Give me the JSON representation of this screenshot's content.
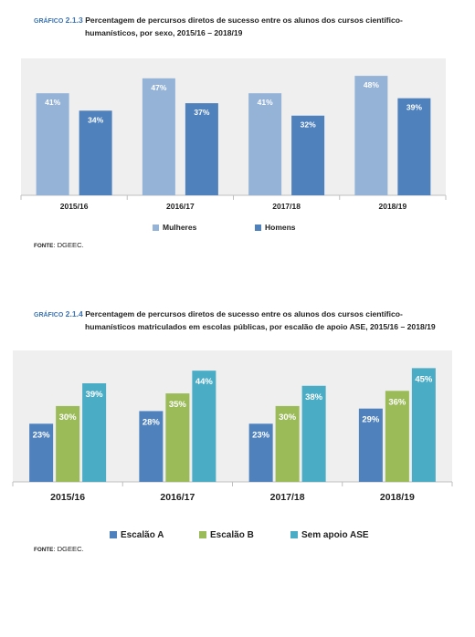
{
  "figures": [
    {
      "caption_label": "GRÁFICO",
      "caption_number": "2.1.3",
      "caption_line1": "Percentagem de percursos diretos de sucesso entre os alunos dos cursos científico-",
      "caption_line2": "humanísticos, por sexo, 2015/16 – 2018/19",
      "source_label": "FONTE",
      "source_text": ": DGEEC."
    },
    {
      "caption_label": "GRÁFICO",
      "caption_number": "2.1.4",
      "caption_line1": "Percentagem de percursos diretos de sucesso entre os alunos dos cursos científico-",
      "caption_line2": "humanísticos matriculados em escolas públicas, por escalão de apoio ASE, 2015/16 – 2018/19",
      "source_label": "FONTE",
      "source_text": ": DGEEC."
    }
  ],
  "chart_data": [
    {
      "type": "bar",
      "categories": [
        "2015/16",
        "2016/17",
        "2017/18",
        "2018/19"
      ],
      "series": [
        {
          "name": "Mulheres",
          "values": [
            41,
            47,
            41,
            48
          ],
          "labels": [
            "41%",
            "47%",
            "41%",
            "48%"
          ],
          "color": "#95b3d7"
        },
        {
          "name": "Homens",
          "values": [
            34,
            37,
            32,
            39
          ],
          "labels": [
            "34%",
            "37%",
            "32%",
            "39%"
          ],
          "color": "#4f81bd"
        }
      ],
      "ylim": [
        0,
        55
      ],
      "grid": false,
      "legend": "bottom",
      "plot_background": "#efefef"
    },
    {
      "type": "bar",
      "categories": [
        "2015/16",
        "2016/17",
        "2017/18",
        "2018/19"
      ],
      "series": [
        {
          "name": "Escalão A",
          "values": [
            23,
            28,
            23,
            29
          ],
          "labels": [
            "23%",
            "28%",
            "23%",
            "29%"
          ],
          "color": "#4f81bd"
        },
        {
          "name": "Escalão B",
          "values": [
            30,
            35,
            30,
            36
          ],
          "labels": [
            "30%",
            "35%",
            "30%",
            "36%"
          ],
          "color": "#9bbb59"
        },
        {
          "name": "Sem apoio ASE",
          "values": [
            39,
            44,
            38,
            45
          ],
          "labels": [
            "39%",
            "44%",
            "38%",
            "45%"
          ],
          "color": "#4bacc6"
        }
      ],
      "ylim": [
        0,
        52
      ],
      "grid": false,
      "legend": "bottom",
      "plot_background": "#efefef"
    }
  ]
}
